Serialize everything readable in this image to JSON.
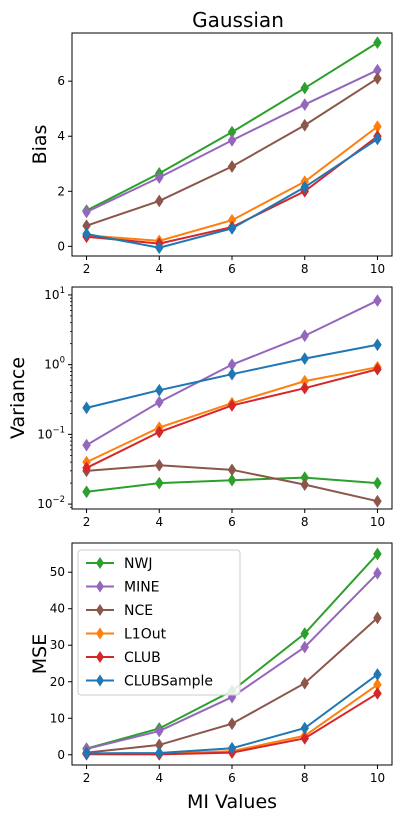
{
  "figure": {
    "title": "Gaussian"
  },
  "chart_data": [
    {
      "type": "line",
      "ylabel": "Bias",
      "xlabel": "",
      "yscale": "linear",
      "ylim": [
        -0.35,
        7.75
      ],
      "yticks": [
        0,
        2,
        4,
        6
      ],
      "x": [
        2,
        4,
        6,
        8,
        10
      ],
      "series": [
        {
          "name": "NWJ",
          "color": "#2ca02c",
          "values": [
            1.3,
            2.65,
            4.15,
            5.75,
            7.4
          ]
        },
        {
          "name": "MINE",
          "color": "#9467bd",
          "values": [
            1.25,
            2.5,
            3.85,
            5.15,
            6.4
          ]
        },
        {
          "name": "NCE",
          "color": "#8c564b",
          "values": [
            0.75,
            1.65,
            2.9,
            4.4,
            6.1
          ]
        },
        {
          "name": "L1Out",
          "color": "#ff7f0e",
          "values": [
            0.4,
            0.2,
            0.95,
            2.35,
            4.35
          ]
        },
        {
          "name": "CLUB",
          "color": "#d62728",
          "values": [
            0.35,
            0.1,
            0.7,
            2.0,
            4.0
          ]
        },
        {
          "name": "CLUBSample",
          "color": "#1f77b4",
          "values": [
            0.45,
            -0.05,
            0.65,
            2.15,
            3.9
          ]
        }
      ]
    },
    {
      "type": "line",
      "ylabel": "Variance",
      "xlabel": "",
      "yscale": "log",
      "ylim": [
        0.0085,
        13
      ],
      "yticks": [
        0.01,
        0.1,
        1,
        10
      ],
      "yticklabels": [
        {
          "base": "10",
          "exp": "−2"
        },
        {
          "base": "10",
          "exp": "−1"
        },
        {
          "base": "10",
          "exp": "0"
        },
        {
          "base": "10",
          "exp": "1"
        }
      ],
      "x": [
        2,
        4,
        6,
        8,
        10
      ],
      "series": [
        {
          "name": "NWJ",
          "color": "#2ca02c",
          "values": [
            0.015,
            0.02,
            0.022,
            0.024,
            0.02
          ]
        },
        {
          "name": "MINE",
          "color": "#9467bd",
          "values": [
            0.07,
            0.29,
            1.0,
            2.6,
            8.3
          ]
        },
        {
          "name": "NCE",
          "color": "#8c564b",
          "values": [
            0.03,
            0.036,
            0.031,
            0.019,
            0.011
          ]
        },
        {
          "name": "L1Out",
          "color": "#ff7f0e",
          "values": [
            0.04,
            0.125,
            0.28,
            0.58,
            0.92
          ]
        },
        {
          "name": "CLUB",
          "color": "#d62728",
          "values": [
            0.033,
            0.108,
            0.26,
            0.46,
            0.86
          ]
        },
        {
          "name": "CLUBSample",
          "color": "#1f77b4",
          "values": [
            0.24,
            0.43,
            0.73,
            1.22,
            1.93
          ]
        }
      ]
    },
    {
      "type": "line",
      "ylabel": "MSE",
      "xlabel": "MI Values",
      "yscale": "linear",
      "ylim": [
        -2.8,
        58
      ],
      "yticks": [
        0,
        10,
        20,
        30,
        40,
        50
      ],
      "x": [
        2,
        4,
        6,
        8,
        10
      ],
      "legend": "upper-left",
      "series": [
        {
          "name": "NWJ",
          "color": "#2ca02c",
          "values": [
            1.7,
            7.2,
            17.5,
            33.2,
            55.0
          ]
        },
        {
          "name": "MINE",
          "color": "#9467bd",
          "values": [
            1.6,
            6.5,
            15.8,
            29.5,
            49.7
          ]
        },
        {
          "name": "NCE",
          "color": "#8c564b",
          "values": [
            0.6,
            2.7,
            8.5,
            19.6,
            37.5
          ]
        },
        {
          "name": "L1Out",
          "color": "#ff7f0e",
          "values": [
            0.2,
            0.2,
            1.0,
            5.2,
            19.2
          ]
        },
        {
          "name": "CLUB",
          "color": "#d62728",
          "values": [
            0.15,
            0.1,
            0.6,
            4.5,
            16.8
          ]
        },
        {
          "name": "CLUBSample",
          "color": "#1f77b4",
          "values": [
            0.4,
            0.5,
            1.8,
            7.3,
            22.0
          ]
        }
      ]
    }
  ]
}
